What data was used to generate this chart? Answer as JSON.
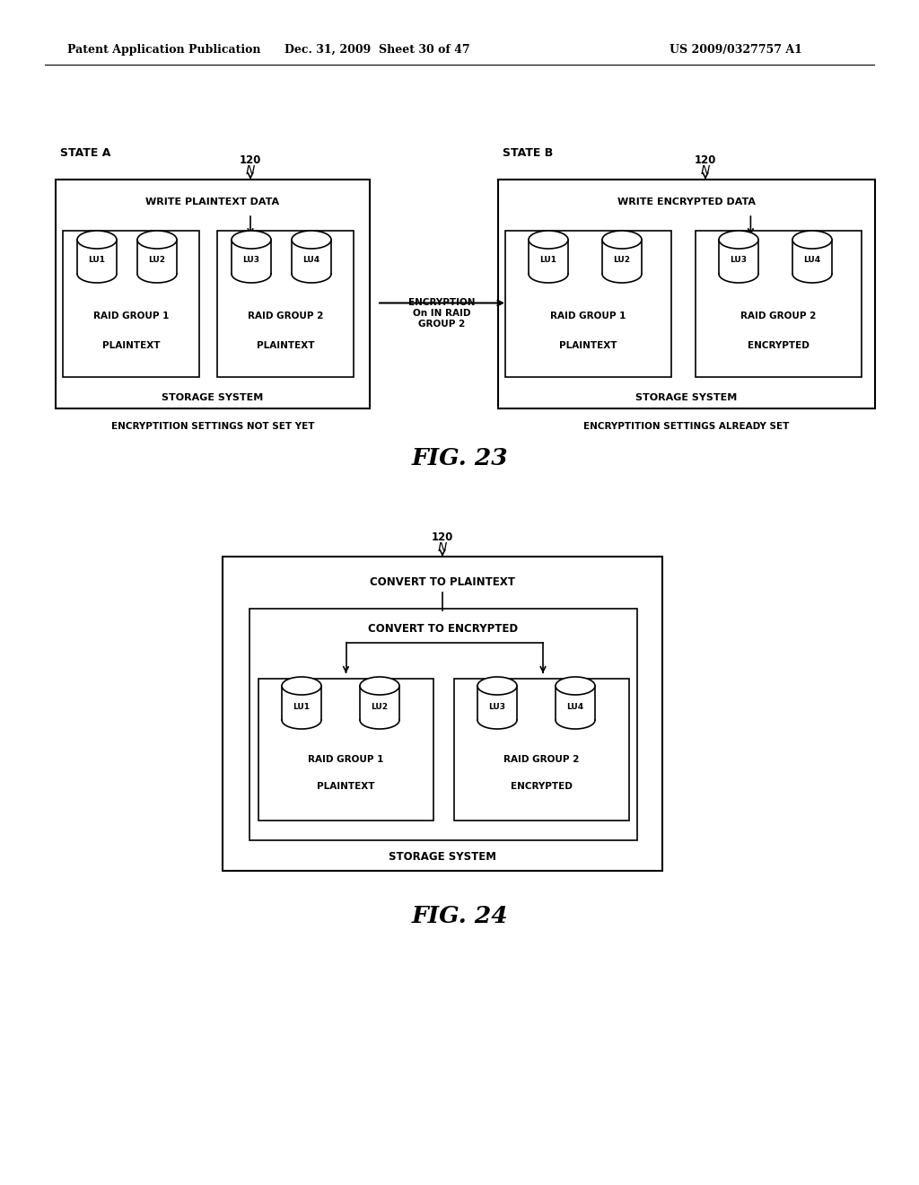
{
  "bg_color": "#ffffff",
  "header_left": "Patent Application Publication",
  "header_mid": "Dec. 31, 2009  Sheet 30 of 47",
  "header_right": "US 2009/0327757 A1",
  "fig23_label": "FIG. 23",
  "fig24_label": "FIG. 24",
  "state_a_label": "STATE A",
  "state_b_label": "STATE B",
  "ref_120": "120",
  "ref_N": "N",
  "write_plaintext": "WRITE PLAINTEXT DATA",
  "write_encrypted": "WRITE ENCRYPTED DATA",
  "encryption_label": "ENCRYPTION\nOn IN RAID\nGROUP 2",
  "rg1_label": "RAID GROUP 1",
  "rg2_label": "RAID GROUP 2",
  "plaintext_label": "PLAINTEXT",
  "encrypted_label": "ENCRYPTED",
  "storage_system_label": "STORAGE SYSTEM",
  "encrypt_not_set": "ENCRYPTITION SETTINGS NOT SET YET",
  "encrypt_already_set": "ENCRYPTITION SETTINGS ALREADY SET",
  "lu_labels": [
    "LU1",
    "LU2",
    "LU3",
    "LU4"
  ],
  "fig24_convert_plaintext": "CONVERT TO PLAINTEXT",
  "fig24_convert_encrypted": "CONVERT TO ENCRYPTED",
  "fig24_rg1": "RAID GROUP 1",
  "fig24_rg2": "RAID GROUP 2",
  "fig24_plaintext": "PLAINTEXT",
  "fig24_encrypted": "ENCRYPTED",
  "fig24_storage": "STORAGE SYSTEM"
}
